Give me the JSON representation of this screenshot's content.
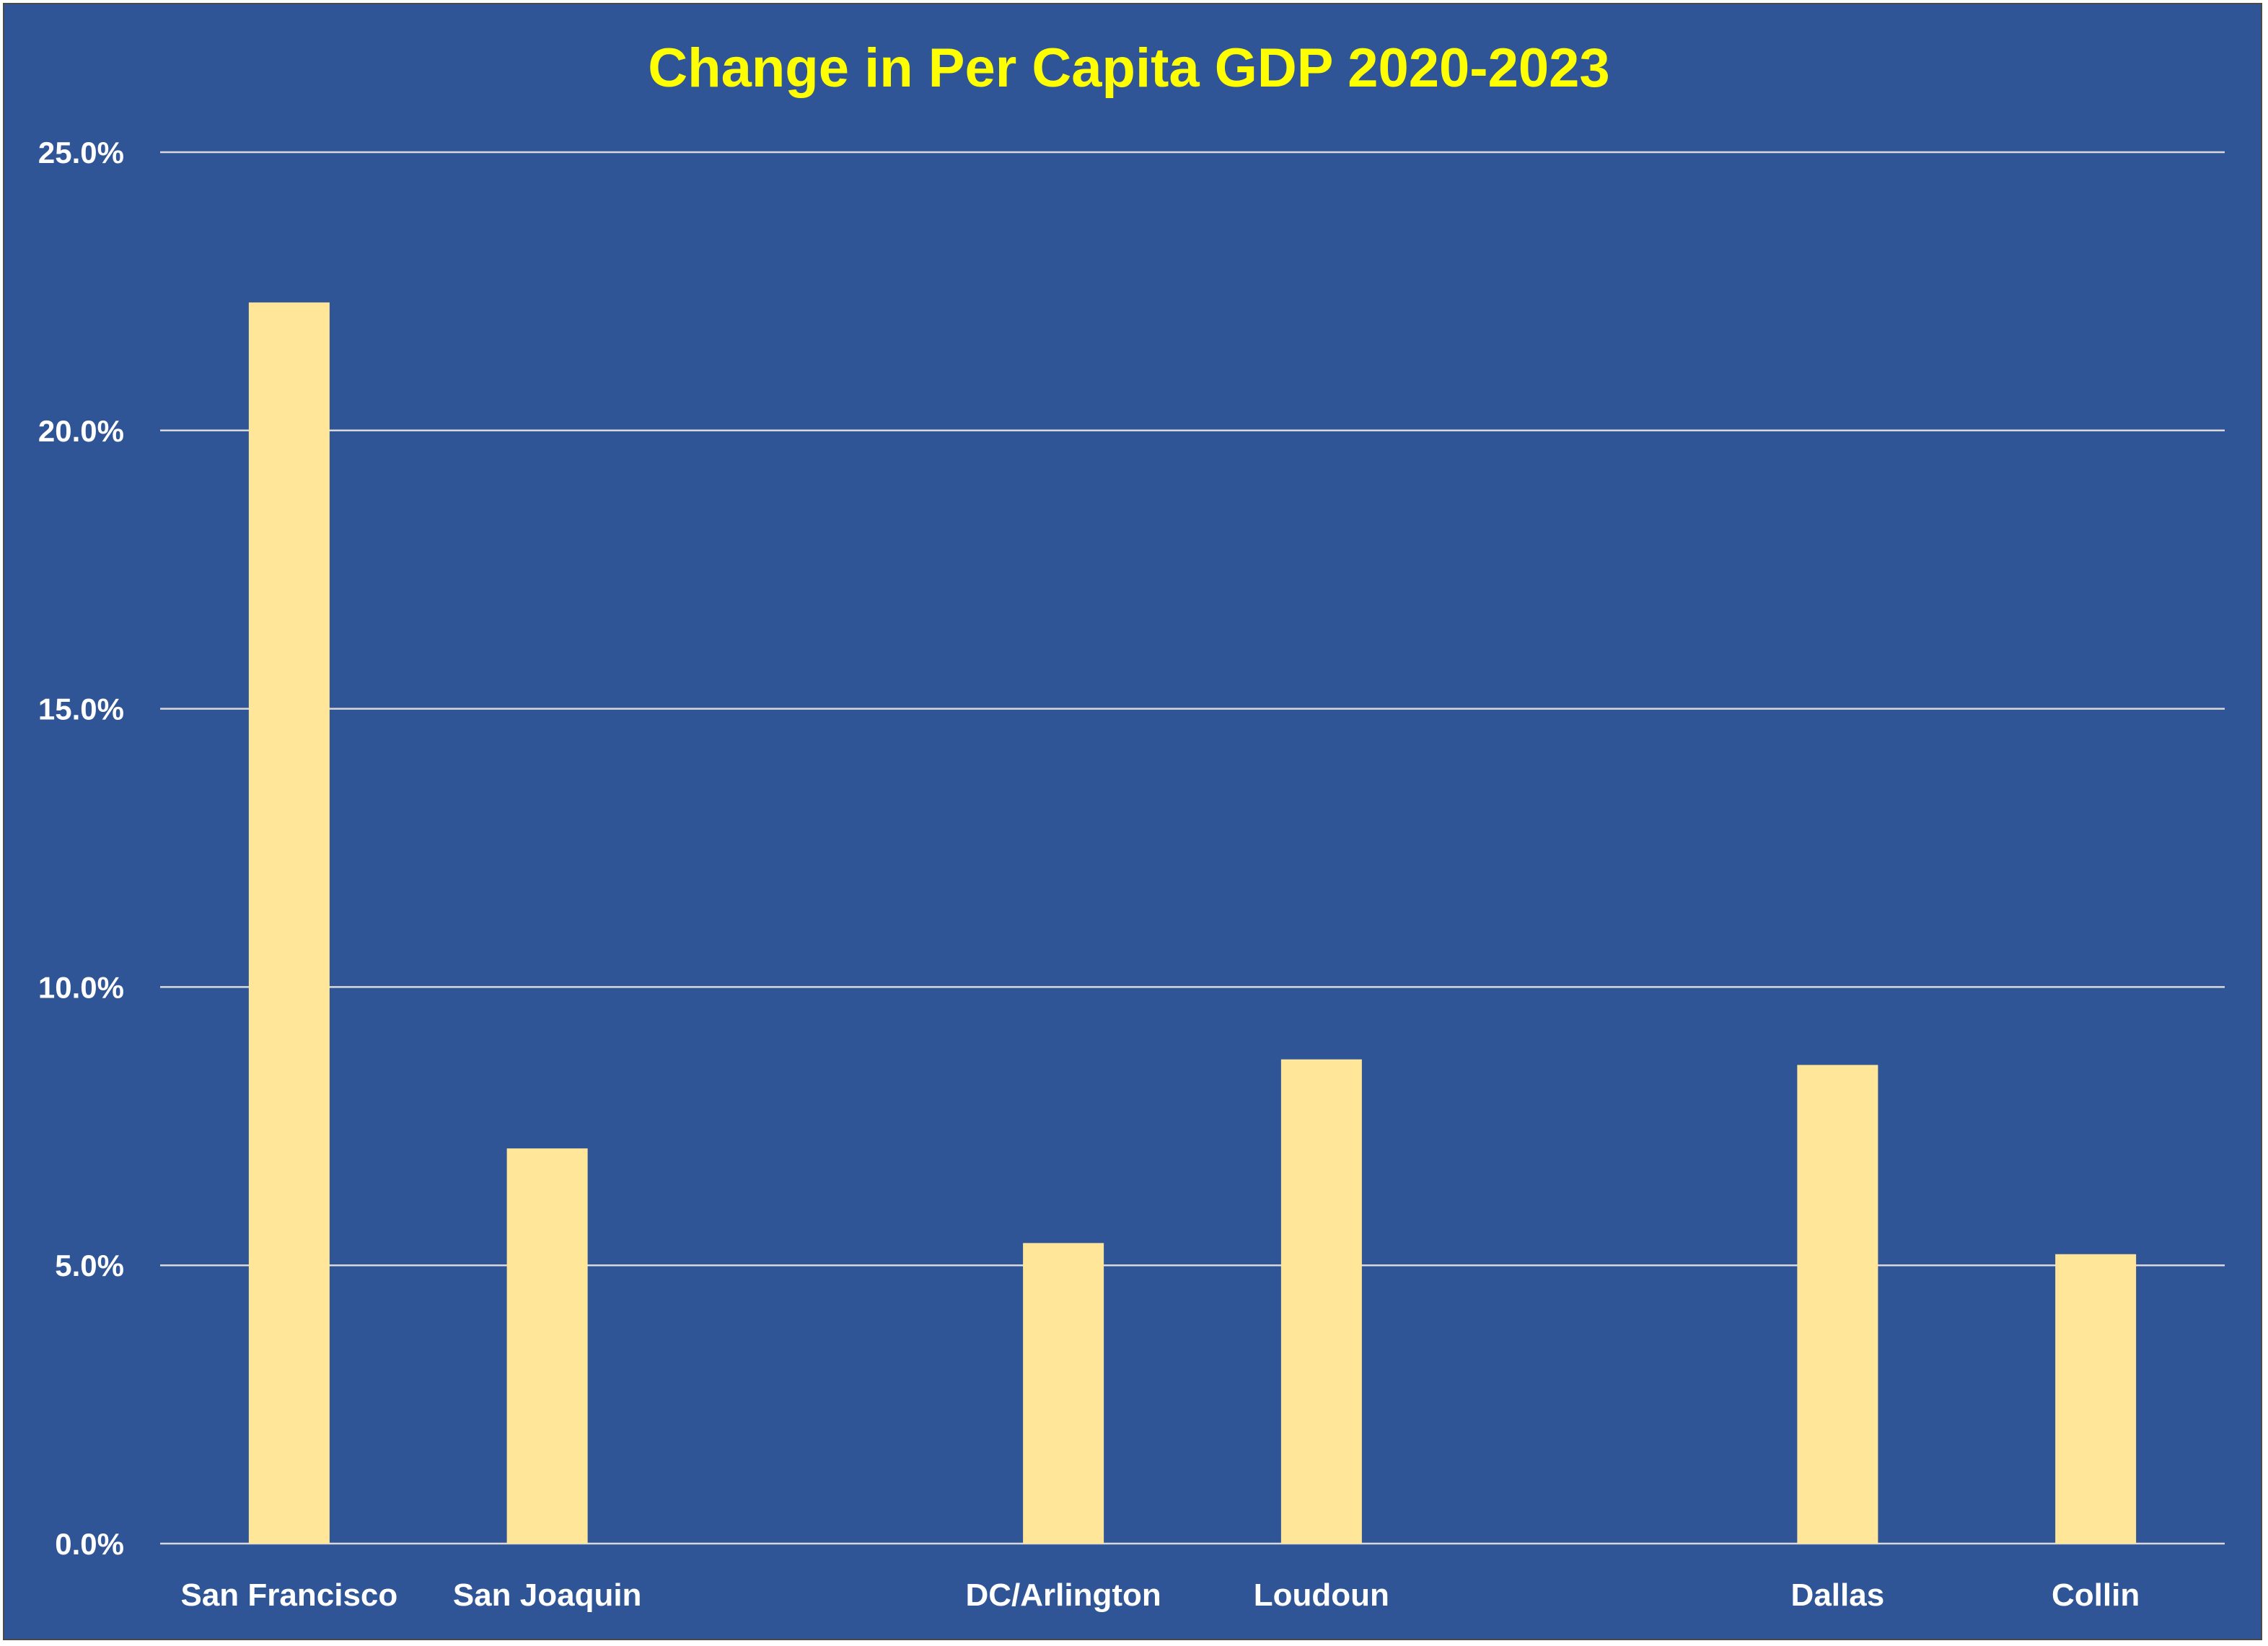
{
  "chart_data": {
    "type": "bar",
    "title": "Change in Per Capita GDP 2020-2023",
    "xlabel": "",
    "ylabel": "",
    "ylim": [
      0,
      25
    ],
    "y_tick_values": [
      0,
      5,
      10,
      15,
      20,
      25
    ],
    "y_tick_labels": [
      "0.0%",
      "5.0%",
      "10.0%",
      "15.0%",
      "20.0%",
      "25.0%"
    ],
    "grid": true,
    "legend": "none",
    "slots": [
      "San Francisco",
      "San Joaquin",
      "",
      "DC/Arlington",
      "Loudoun",
      "",
      "Dallas",
      "Collin"
    ],
    "categories": [
      "San Francisco",
      "San Joaquin",
      "DC/Arlington",
      "Loudoun",
      "Dallas",
      "Collin"
    ],
    "values": [
      22.3,
      7.1,
      5.4,
      8.7,
      8.6,
      5.2
    ],
    "colors": {
      "background": "#2F5597",
      "bar": "#FFE699",
      "title": "#FFFF00",
      "text": "#FFFFFF",
      "grid": "#D9D9D9"
    }
  }
}
